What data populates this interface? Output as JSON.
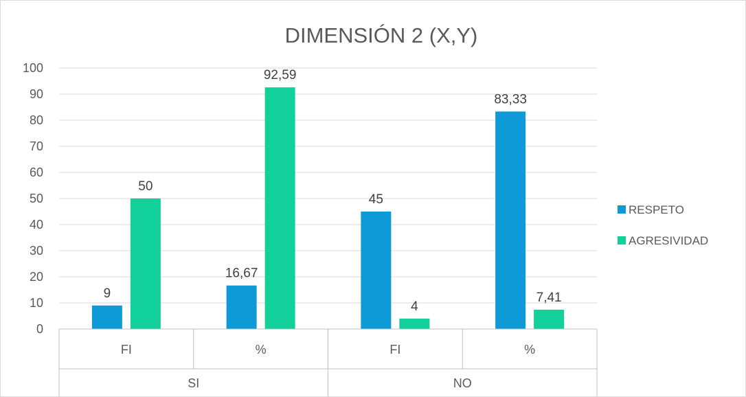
{
  "chart_data": {
    "type": "bar",
    "title": "DIMENSIÓN 2 (X,Y)",
    "groups": [
      {
        "label": "SI",
        "categories": [
          "FI",
          "%"
        ]
      },
      {
        "label": "NO",
        "categories": [
          "FI",
          "%"
        ]
      }
    ],
    "categories": [
      "FI",
      "%",
      "FI",
      "%"
    ],
    "series": [
      {
        "name": "RESPETO",
        "color": "#0d9ad6",
        "values": [
          9,
          16.67,
          45,
          83.33
        ],
        "labels": [
          "9",
          "16,67",
          "45",
          "83,33"
        ]
      },
      {
        "name": "AGRESIVIDAD",
        "color": "#12d09a",
        "values": [
          50,
          92.59,
          4,
          7.41
        ],
        "labels": [
          "50",
          "92,59",
          "4",
          "7,41"
        ]
      }
    ],
    "ylim": [
      0,
      100
    ],
    "yticks": [
      "0",
      "10",
      "20",
      "30",
      "40",
      "50",
      "60",
      "70",
      "80",
      "90",
      "100"
    ],
    "grid": true,
    "legend_position": "right"
  }
}
